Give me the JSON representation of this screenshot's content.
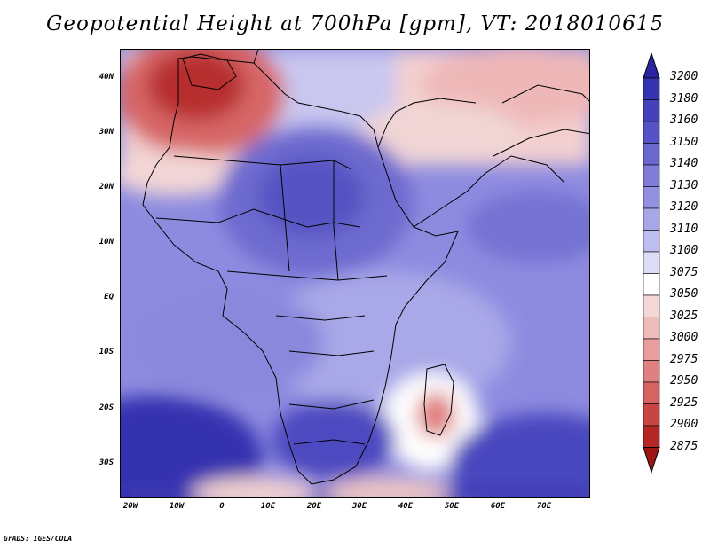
{
  "title": "Geopotential Height at 700hPa [gpm], VT: 2018010615",
  "credit": "GrADS: IGES/COLA",
  "lat_labels": [
    "40N",
    "30N",
    "20N",
    "10N",
    "EQ",
    "10S",
    "20S",
    "30S"
  ],
  "lon_labels": [
    "20W",
    "10W",
    "0",
    "10E",
    "20E",
    "30E",
    "40E",
    "50E",
    "60E",
    "70E"
  ],
  "colorbar": {
    "levels": [
      "3200",
      "3180",
      "3160",
      "3150",
      "3140",
      "3130",
      "3120",
      "3110",
      "3100",
      "3075",
      "3050",
      "3025",
      "3000",
      "2975",
      "2950",
      "2925",
      "2900",
      "2875"
    ],
    "colors": [
      "#2a24a0",
      "#3633b0",
      "#4541bd",
      "#5753c6",
      "#6a68cf",
      "#7e7cd8",
      "#9291df",
      "#a7a7e8",
      "#bdbdf0",
      "#dcdcf7",
      "#ffffff",
      "#f6d7d7",
      "#efbcbc",
      "#e89e9e",
      "#e08080",
      "#d66262",
      "#c94444",
      "#b52727",
      "#9e1515"
    ]
  }
}
